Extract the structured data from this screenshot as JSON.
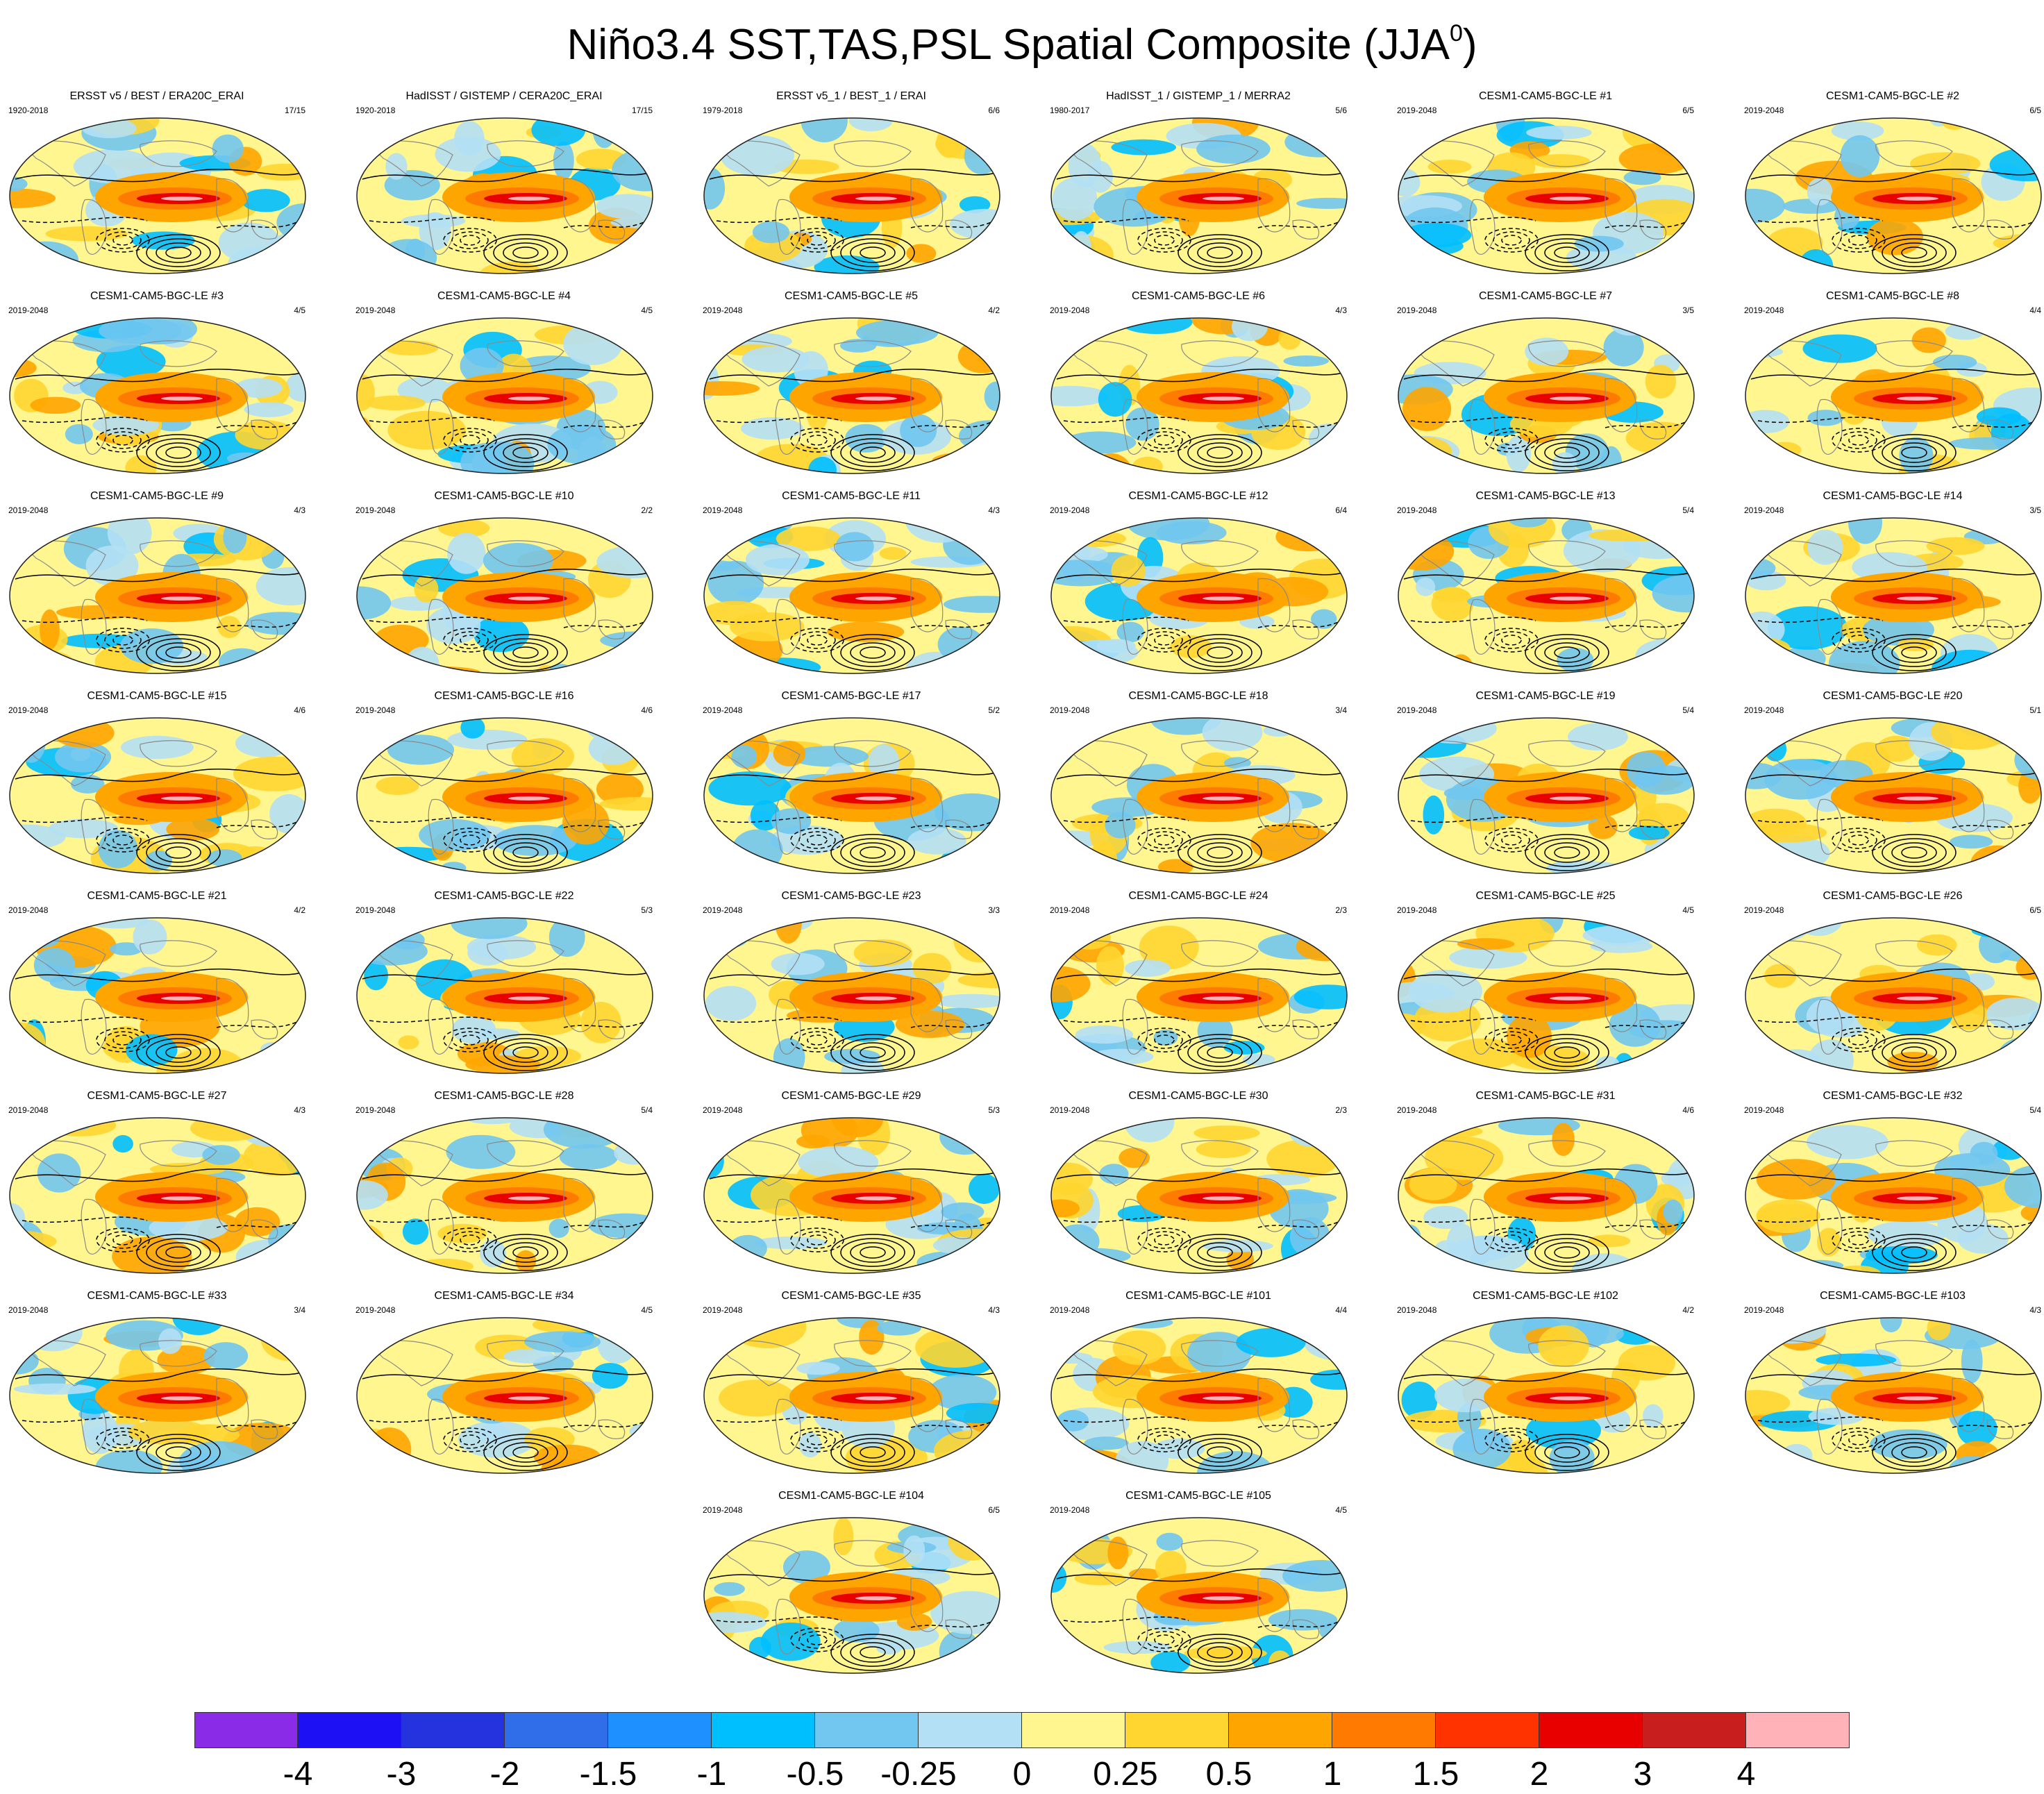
{
  "title": {
    "main": "Niño3.4 SST,TAS,PSL Spatial Composite (JJA",
    "superscript": "0",
    "close": ")"
  },
  "panels": [
    {
      "title": "ERSST v5 / BEST / ERA20C_ERAI",
      "years": "1920-2018",
      "count": "17/15"
    },
    {
      "title": "HadISST / GISTEMP / CERA20C_ERAI",
      "years": "1920-2018",
      "count": "17/15"
    },
    {
      "title": "ERSST v5_1 / BEST_1 / ERAI",
      "years": "1979-2018",
      "count": "6/6"
    },
    {
      "title": "HadISST_1 / GISTEMP_1 / MERRA2",
      "years": "1980-2017",
      "count": "5/6"
    },
    {
      "title": "CESM1-CAM5-BGC-LE #1",
      "years": "2019-2048",
      "count": "6/5"
    },
    {
      "title": "CESM1-CAM5-BGC-LE #2",
      "years": "2019-2048",
      "count": "6/5"
    },
    {
      "title": "CESM1-CAM5-BGC-LE #3",
      "years": "2019-2048",
      "count": "4/5"
    },
    {
      "title": "CESM1-CAM5-BGC-LE #4",
      "years": "2019-2048",
      "count": "4/5"
    },
    {
      "title": "CESM1-CAM5-BGC-LE #5",
      "years": "2019-2048",
      "count": "4/2"
    },
    {
      "title": "CESM1-CAM5-BGC-LE #6",
      "years": "2019-2048",
      "count": "4/3"
    },
    {
      "title": "CESM1-CAM5-BGC-LE #7",
      "years": "2019-2048",
      "count": "3/5"
    },
    {
      "title": "CESM1-CAM5-BGC-LE #8",
      "years": "2019-2048",
      "count": "4/4"
    },
    {
      "title": "CESM1-CAM5-BGC-LE #9",
      "years": "2019-2048",
      "count": "4/3"
    },
    {
      "title": "CESM1-CAM5-BGC-LE #10",
      "years": "2019-2048",
      "count": "2/2"
    },
    {
      "title": "CESM1-CAM5-BGC-LE #11",
      "years": "2019-2048",
      "count": "4/3"
    },
    {
      "title": "CESM1-CAM5-BGC-LE #12",
      "years": "2019-2048",
      "count": "6/4"
    },
    {
      "title": "CESM1-CAM5-BGC-LE #13",
      "years": "2019-2048",
      "count": "5/4"
    },
    {
      "title": "CESM1-CAM5-BGC-LE #14",
      "years": "2019-2048",
      "count": "3/5"
    },
    {
      "title": "CESM1-CAM5-BGC-LE #15",
      "years": "2019-2048",
      "count": "4/6"
    },
    {
      "title": "CESM1-CAM5-BGC-LE #16",
      "years": "2019-2048",
      "count": "4/6"
    },
    {
      "title": "CESM1-CAM5-BGC-LE #17",
      "years": "2019-2048",
      "count": "5/2"
    },
    {
      "title": "CESM1-CAM5-BGC-LE #18",
      "years": "2019-2048",
      "count": "3/4"
    },
    {
      "title": "CESM1-CAM5-BGC-LE #19",
      "years": "2019-2048",
      "count": "5/4"
    },
    {
      "title": "CESM1-CAM5-BGC-LE #20",
      "years": "2019-2048",
      "count": "5/1"
    },
    {
      "title": "CESM1-CAM5-BGC-LE #21",
      "years": "2019-2048",
      "count": "4/2"
    },
    {
      "title": "CESM1-CAM5-BGC-LE #22",
      "years": "2019-2048",
      "count": "5/3"
    },
    {
      "title": "CESM1-CAM5-BGC-LE #23",
      "years": "2019-2048",
      "count": "3/3"
    },
    {
      "title": "CESM1-CAM5-BGC-LE #24",
      "years": "2019-2048",
      "count": "2/3"
    },
    {
      "title": "CESM1-CAM5-BGC-LE #25",
      "years": "2019-2048",
      "count": "4/5"
    },
    {
      "title": "CESM1-CAM5-BGC-LE #26",
      "years": "2019-2048",
      "count": "6/5"
    },
    {
      "title": "CESM1-CAM5-BGC-LE #27",
      "years": "2019-2048",
      "count": "4/3"
    },
    {
      "title": "CESM1-CAM5-BGC-LE #28",
      "years": "2019-2048",
      "count": "5/4"
    },
    {
      "title": "CESM1-CAM5-BGC-LE #29",
      "years": "2019-2048",
      "count": "5/3"
    },
    {
      "title": "CESM1-CAM5-BGC-LE #30",
      "years": "2019-2048",
      "count": "2/3"
    },
    {
      "title": "CESM1-CAM5-BGC-LE #31",
      "years": "2019-2048",
      "count": "4/6"
    },
    {
      "title": "CESM1-CAM5-BGC-LE #32",
      "years": "2019-2048",
      "count": "5/4"
    },
    {
      "title": "CESM1-CAM5-BGC-LE #33",
      "years": "2019-2048",
      "count": "3/4"
    },
    {
      "title": "CESM1-CAM5-BGC-LE #34",
      "years": "2019-2048",
      "count": "4/5"
    },
    {
      "title": "CESM1-CAM5-BGC-LE #35",
      "years": "2019-2048",
      "count": "4/3"
    },
    {
      "title": "CESM1-CAM5-BGC-LE #101",
      "years": "2019-2048",
      "count": "4/4"
    },
    {
      "title": "CESM1-CAM5-BGC-LE #102",
      "years": "2019-2048",
      "count": "4/2"
    },
    {
      "title": "CESM1-CAM5-BGC-LE #103",
      "years": "2019-2048",
      "count": "4/3"
    },
    {
      "title": "CESM1-CAM5-BGC-LE #104",
      "years": "2019-2048",
      "count": "6/5"
    },
    {
      "title": "CESM1-CAM5-BGC-LE #105",
      "years": "2019-2048",
      "count": "4/5"
    }
  ],
  "colorbar": {
    "colors": [
      "#8a2be8",
      "#1d10f5",
      "#2433de",
      "#2f6ee8",
      "#1e90ff",
      "#00bfff",
      "#71c7f0",
      "#b4e0f5",
      "#fff68f",
      "#ffd530",
      "#ffa500",
      "#ff7a00",
      "#ff3300",
      "#e80000",
      "#c81e1e",
      "#ffb3b8"
    ],
    "labels": [
      "-4",
      "-3",
      "-2",
      "-1.5",
      "-1",
      "-0.5",
      "-0.25",
      "0",
      "0.25",
      "0.5",
      "1",
      "1.5",
      "2",
      "3",
      "4"
    ]
  }
}
